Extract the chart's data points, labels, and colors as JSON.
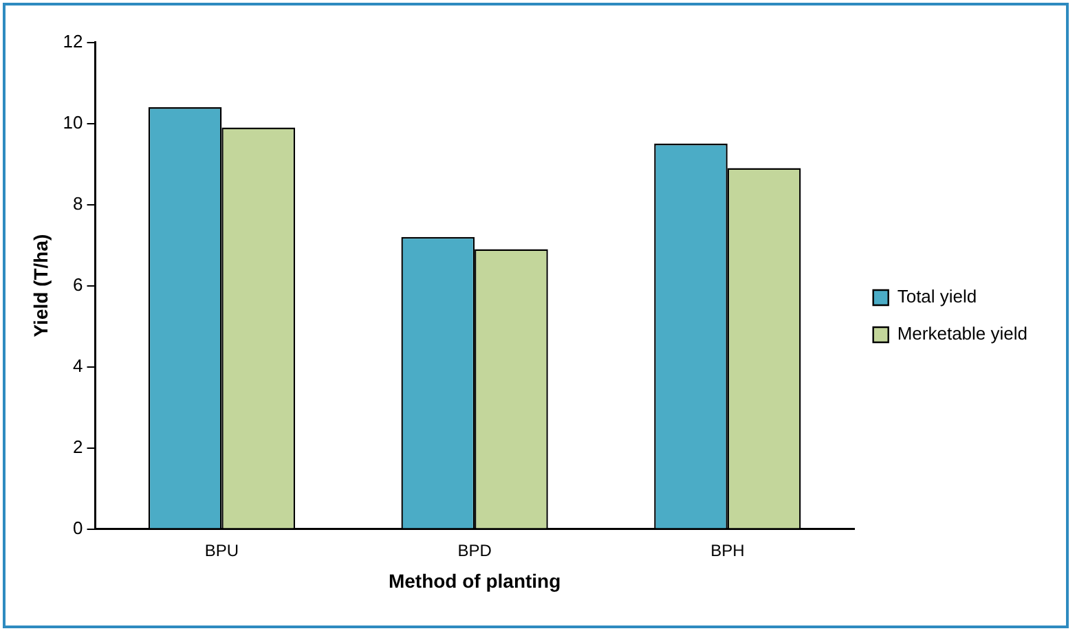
{
  "chart_data": {
    "type": "bar",
    "xlabel": "Method of planting",
    "ylabel": "Yield (T/ha)",
    "categories": [
      "BPU",
      "BPD",
      "BPH"
    ],
    "series": [
      {
        "name": "Total yield",
        "color": "#4bacc6",
        "values": [
          10.4,
          7.2,
          9.5
        ]
      },
      {
        "name": "Merketable yield",
        "color": "#c3d69b",
        "values": [
          9.9,
          6.9,
          8.9
        ]
      }
    ],
    "ylim": [
      0,
      12
    ],
    "yticks": [
      0,
      2,
      4,
      6,
      8,
      10,
      12
    ],
    "grid": false,
    "legend": "right"
  }
}
